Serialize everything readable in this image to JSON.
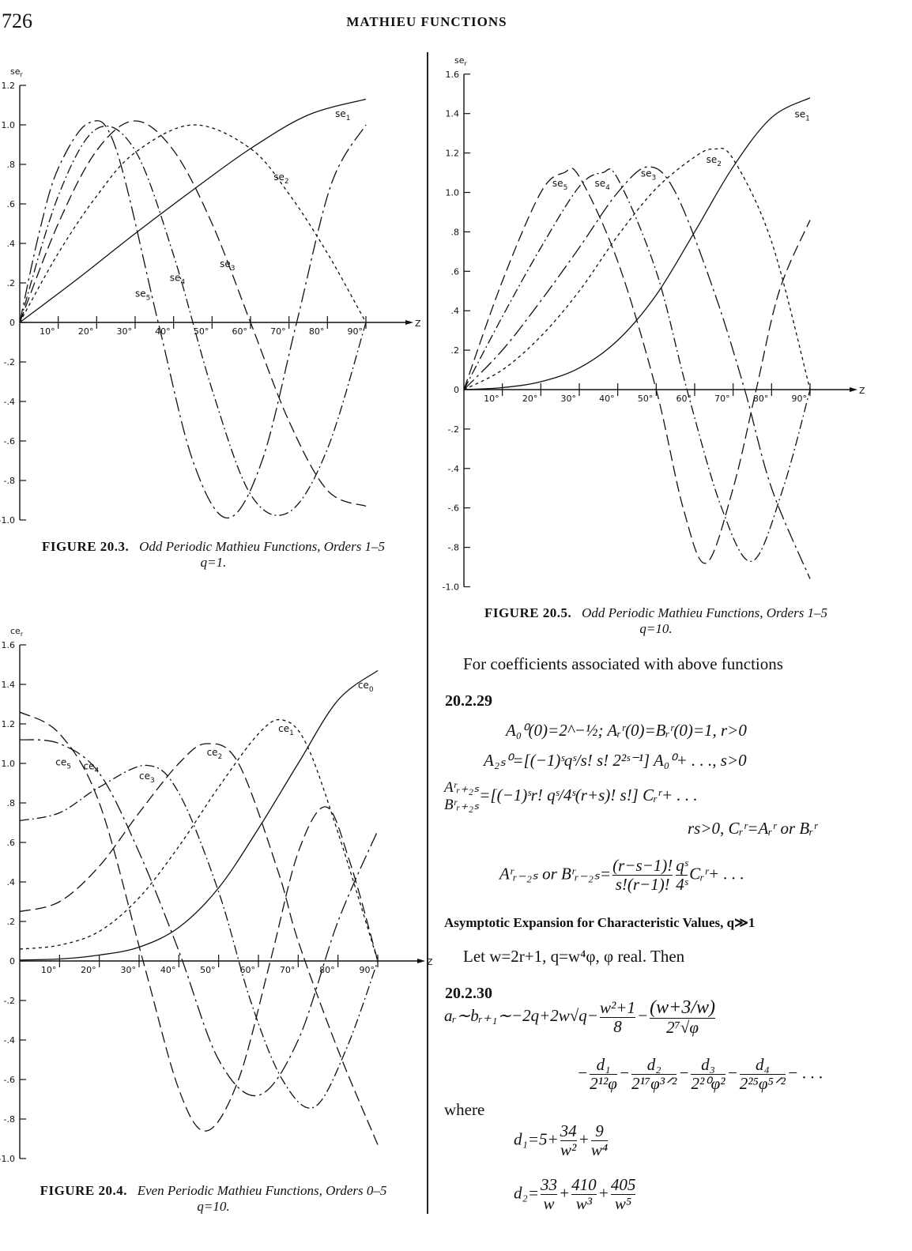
{
  "header": {
    "page_number": "726",
    "running_title": "MATHIEU FUNCTIONS"
  },
  "chart_data": [
    {
      "type": "line",
      "caption_label": "FIGURE 20.3.",
      "title": "Odd Periodic Mathieu Functions, Orders 1–5",
      "subtitle": "q=1.",
      "ylabel": "se",
      "ylabel_sub": "r",
      "xlabel": "Z",
      "xlim": [
        0,
        90
      ],
      "ylim": [
        -1.0,
        1.2
      ],
      "xticks": [
        10,
        20,
        30,
        40,
        50,
        60,
        70,
        80,
        90
      ],
      "xtick_labels": [
        "10°",
        "20°",
        "30°",
        "40°",
        "50°",
        "60°",
        "70°",
        "80°",
        "90°"
      ],
      "yticks": [
        1.2,
        1.0,
        0.8,
        0.6,
        0.4,
        0.2,
        0,
        -0.2,
        -0.4,
        -0.6,
        -0.8,
        -1.0
      ],
      "ytick_labels": [
        "1.2",
        "1.0",
        ".8",
        ".6",
        ".4",
        ".2",
        "0",
        "-.2",
        "-.4",
        "-.6",
        "-.8",
        "-1.0"
      ],
      "grid": false,
      "series": [
        {
          "name": "se1",
          "sub": "1",
          "style": "solid",
          "label_at": [
            82,
            1.04
          ],
          "x": [
            0,
            15,
            30,
            45,
            60,
            75,
            90
          ],
          "y": [
            0,
            0.22,
            0.45,
            0.67,
            0.88,
            1.05,
            1.13
          ]
        },
        {
          "name": "se2",
          "sub": "2",
          "style": "short-dash",
          "label_at": [
            66,
            0.72
          ],
          "x": [
            0,
            10,
            20,
            30,
            45,
            60,
            70,
            80,
            90
          ],
          "y": [
            0,
            0.35,
            0.64,
            0.86,
            1.0,
            0.88,
            0.65,
            0.35,
            0
          ]
        },
        {
          "name": "se3",
          "sub": "3",
          "style": "long-dash",
          "label_at": [
            52,
            0.28
          ],
          "x": [
            0,
            10,
            20,
            30,
            40,
            50,
            60,
            70,
            80,
            90
          ],
          "y": [
            0,
            0.5,
            0.87,
            1.02,
            0.87,
            0.5,
            0,
            -0.5,
            -0.85,
            -0.93
          ]
        },
        {
          "name": "se4",
          "sub": "4",
          "style": "dash-dot",
          "label_at": [
            39,
            0.21
          ],
          "x": [
            0,
            10,
            20,
            30,
            40,
            50,
            60,
            70,
            80,
            90
          ],
          "y": [
            0,
            0.64,
            0.98,
            0.87,
            0.34,
            -0.34,
            -0.87,
            -0.96,
            -0.64,
            0
          ]
        },
        {
          "name": "se5",
          "sub": "5",
          "style": "long-dash-dot",
          "label_at": [
            30,
            0.13
          ],
          "x": [
            0,
            5,
            10,
            18,
            25,
            36,
            45,
            54,
            63,
            72,
            81,
            90
          ],
          "y": [
            0,
            0.45,
            0.78,
            1.01,
            0.88,
            0,
            -0.7,
            -0.99,
            -0.7,
            0,
            0.7,
            1.0
          ]
        }
      ]
    },
    {
      "type": "line",
      "caption_label": "FIGURE 20.5.",
      "title": "Odd Periodic Mathieu Functions, Orders 1–5",
      "subtitle": "q=10.",
      "ylabel": "se",
      "ylabel_sub": "r",
      "xlabel": "Z",
      "xlim": [
        0,
        90
      ],
      "ylim": [
        -1.0,
        1.6
      ],
      "xticks": [
        10,
        20,
        30,
        40,
        50,
        60,
        70,
        80,
        90
      ],
      "xtick_labels": [
        "10°",
        "20°",
        "30°",
        "40°",
        "50°",
        "60°",
        "70°",
        "80°",
        "90°"
      ],
      "yticks": [
        1.6,
        1.4,
        1.2,
        1.0,
        0.8,
        0.6,
        0.4,
        0.2,
        0,
        -0.2,
        -0.4,
        -0.6,
        -0.8,
        -1.0
      ],
      "ytick_labels": [
        "1.6",
        "1.4",
        "1.2",
        "1.0",
        ".8",
        ".6",
        ".4",
        ".2",
        "0",
        "-.2",
        "-.4",
        "-.6",
        "-.8",
        "-1.0"
      ],
      "grid": false,
      "series": [
        {
          "name": "se1",
          "sub": "1",
          "style": "solid",
          "label_at": [
            86,
            1.38
          ],
          "x": [
            0,
            10,
            20,
            30,
            40,
            50,
            60,
            70,
            80,
            90
          ],
          "y": [
            0,
            0.01,
            0.04,
            0.11,
            0.25,
            0.48,
            0.8,
            1.13,
            1.38,
            1.48
          ]
        },
        {
          "name": "se2",
          "sub": "2",
          "style": "short-dash",
          "label_at": [
            63,
            1.15
          ],
          "x": [
            0,
            10,
            20,
            30,
            40,
            50,
            60,
            65,
            70,
            80,
            90
          ],
          "y": [
            0,
            0.1,
            0.27,
            0.5,
            0.78,
            1.02,
            1.18,
            1.22,
            1.17,
            0.75,
            0
          ]
        },
        {
          "name": "se3",
          "sub": "3",
          "style": "long-dash-dot",
          "label_at": [
            46,
            1.08
          ],
          "x": [
            0,
            10,
            20,
            30,
            40,
            48,
            55,
            65,
            73,
            80,
            90
          ],
          "y": [
            0,
            0.2,
            0.45,
            0.72,
            1.0,
            1.13,
            1.0,
            0.5,
            0,
            -0.5,
            -0.96
          ]
        },
        {
          "name": "se4",
          "sub": "4",
          "style": "dash-dot",
          "label_at": [
            34,
            1.03
          ],
          "x": [
            0,
            10,
            20,
            30,
            36,
            40,
            50,
            58,
            67,
            75,
            83,
            90
          ],
          "y": [
            0,
            0.37,
            0.72,
            1.03,
            1.1,
            1.07,
            0.6,
            0,
            -0.6,
            -0.87,
            -0.5,
            0
          ]
        },
        {
          "name": "se5",
          "sub": "5",
          "style": "long-dash",
          "label_at": [
            23,
            1.03
          ],
          "x": [
            0,
            10,
            20,
            26,
            30,
            40,
            50,
            57,
            63,
            70,
            76,
            82,
            90
          ],
          "y": [
            0,
            0.55,
            1.0,
            1.1,
            1.08,
            0.65,
            0,
            -0.6,
            -0.88,
            -0.5,
            0,
            0.5,
            0.86
          ]
        }
      ]
    },
    {
      "type": "line",
      "caption_label": "FIGURE 20.4.",
      "title": "Even Periodic Mathieu Functions, Orders 0–5",
      "subtitle": "q=10.",
      "ylabel": "ce",
      "ylabel_sub": "r",
      "xlabel": "Z",
      "xlim": [
        0,
        90
      ],
      "ylim": [
        -1.0,
        1.6
      ],
      "xticks": [
        10,
        20,
        30,
        40,
        50,
        60,
        70,
        80,
        90
      ],
      "xtick_labels": [
        "10°",
        "20°",
        "30°",
        "40°",
        "50°",
        "60°",
        "70°",
        "80°",
        "90°"
      ],
      "yticks": [
        1.6,
        1.4,
        1.2,
        1.0,
        0.8,
        0.6,
        0.4,
        0.2,
        0,
        -0.2,
        -0.4,
        -0.6,
        -0.8,
        -1.0
      ],
      "ytick_labels": [
        "1.6",
        "1.4",
        "1.2",
        "1.0",
        ".8",
        ".6",
        ".4",
        ".2",
        "0",
        "-.2",
        "-.4",
        "-.6",
        "-.8",
        "-1.0"
      ],
      "grid": false,
      "series": [
        {
          "name": "ce0",
          "sub": "0",
          "style": "solid",
          "label_at": [
            85,
            1.38
          ],
          "x": [
            0,
            10,
            20,
            30,
            40,
            50,
            60,
            70,
            80,
            90
          ],
          "y": [
            0.005,
            0.01,
            0.03,
            0.07,
            0.17,
            0.37,
            0.67,
            1.0,
            1.32,
            1.47
          ]
        },
        {
          "name": "ce1",
          "sub": "1",
          "style": "short-dash",
          "label_at": [
            65,
            1.16
          ],
          "x": [
            0,
            10,
            20,
            30,
            40,
            50,
            60,
            66,
            72,
            80,
            90
          ],
          "y": [
            0.06,
            0.08,
            0.15,
            0.32,
            0.58,
            0.88,
            1.15,
            1.22,
            1.1,
            0.65,
            0
          ]
        },
        {
          "name": "ce2",
          "sub": "2",
          "style": "long-dash",
          "label_at": [
            47,
            1.04
          ],
          "x": [
            0,
            10,
            20,
            30,
            40,
            47,
            55,
            65,
            70,
            80,
            90
          ],
          "y": [
            0.25,
            0.3,
            0.48,
            0.75,
            1.0,
            1.1,
            1.0,
            0.45,
            0.1,
            -0.45,
            -0.93
          ]
        },
        {
          "name": "ce3",
          "sub": "3",
          "style": "dash-dot",
          "label_at": [
            30,
            0.92
          ],
          "x": [
            0,
            10,
            20,
            32,
            40,
            50,
            58,
            66,
            74,
            82,
            90
          ],
          "y": [
            0.71,
            0.75,
            0.88,
            0.99,
            0.85,
            0.35,
            -0.2,
            -0.6,
            -0.74,
            -0.45,
            0
          ]
        },
        {
          "name": "ce4",
          "sub": "4",
          "style": "long-dash-dot",
          "label_at": [
            16,
            0.97
          ],
          "x": [
            0,
            10,
            20,
            30,
            40,
            50,
            60,
            70,
            80,
            90
          ],
          "y": [
            1.12,
            1.1,
            0.95,
            0.55,
            0.05,
            -0.5,
            -0.68,
            -0.4,
            0.2,
            0.66
          ]
        },
        {
          "name": "ce5",
          "sub": "5",
          "style": "long-dash",
          "label_at": [
            9,
            0.99
          ],
          "x": [
            0,
            10,
            20,
            31,
            40,
            47,
            55,
            63,
            70,
            77,
            83,
            90
          ],
          "y": [
            1.26,
            1.15,
            0.8,
            0,
            -0.65,
            -0.86,
            -0.6,
            0,
            0.55,
            0.78,
            0.5,
            0
          ]
        }
      ]
    }
  ],
  "text": {
    "coeff_intro": "For coefficients associated with above functions",
    "eq1_no": "20.2.29",
    "eq1_line1": "A₀⁰(0)=2^−½; Aᵣʳ(0)=Bᵣʳ(0)=1, r>0",
    "eq1_line2": "A₂ₛ⁰=[(−1)ˢqˢ/s! s! 2²ˢ⁻¹] A₀⁰+ . . ., s>0",
    "eq1_line3_lhs_top": "Aʳᵣ₊₂ₛ",
    "eq1_line3_lhs_bot": "Bʳᵣ₊₂ₛ",
    "eq1_line3_rhs": "=[(−1)ˢr! qˢ/4ˢ(r+s)! s!] Cᵣʳ+ . . .",
    "eq1_line4": "rs>0, Cᵣʳ=Aᵣʳ or Bᵣʳ",
    "eq1_line5_lhs": "Aʳᵣ₋₂ₛ or Bʳᵣ₋₂ₛ=",
    "eq1_line5_num": "(r−s−1)!",
    "eq1_line5_den": "s!(r−1)!",
    "eq1_line5_num2": "qˢ",
    "eq1_line5_den2": "4ˢ",
    "eq1_line5_tail": "Cᵣʳ+ . . .",
    "asym_heading": "Asymptotic Expansion for Characteristic Values, q≫1",
    "let_line": "Let w=2r+1, q=w⁴φ, φ real.   Then",
    "eq2_no": "20.2.30",
    "eq2_lhs": "aᵣ∼bᵣ₊₁∼−2q+2w√q−",
    "eq2_f1_num": "w²+1",
    "eq2_f1_den": "8",
    "eq2_f2_num": "(w+3/w)",
    "eq2_f2_den": "2⁷√φ",
    "eq2_l2": [
      {
        "num": "d₁",
        "den": "2¹²φ"
      },
      {
        "num": "d₂",
        "den": "2¹⁷φ³ᐟ²"
      },
      {
        "num": "d₃",
        "den": "2²⁰φ²"
      },
      {
        "num": "d₄",
        "den": "2²⁵φ⁵ᐟ²"
      }
    ],
    "eq2_l2_tail": "− . . .",
    "where": "where",
    "d1_lhs": "d₁=5+",
    "d1_f1_num": "34",
    "d1_f1_den": "w²",
    "d1_f2_num": "9",
    "d1_f2_den": "w⁴",
    "d2_lhs": "d₂=",
    "d2_f1_num": "33",
    "d2_f1_den": "w",
    "d2_f2_num": "410",
    "d2_f2_den": "w³",
    "d2_f3_num": "405",
    "d2_f3_den": "w⁵"
  }
}
